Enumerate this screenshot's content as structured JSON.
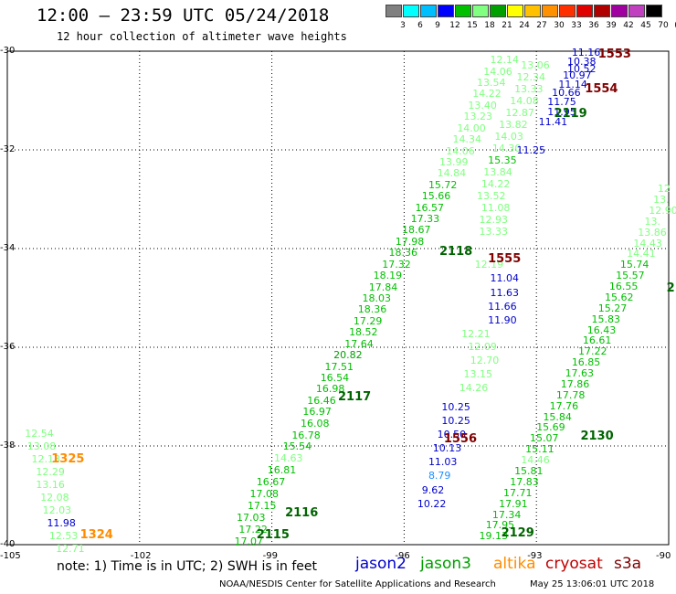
{
  "title": "12:00 — 23:59 UTC 05/24/2018",
  "subtitle": "12 hour collection of altimeter wave heights",
  "colorbar": {
    "labels": [
      "3",
      "6",
      "9",
      "12",
      "15",
      "18",
      "21",
      "24",
      "27",
      "30",
      "33",
      "36",
      "39",
      "42",
      "45",
      "70",
      "(ft)"
    ],
    "colors": [
      "#808080",
      "#00ffff",
      "#00bfff",
      "#0000ff",
      "#00c000",
      "#80ff80",
      "#00a000",
      "#ffff00",
      "#ffc000",
      "#ff9000",
      "#ff3000",
      "#e00000",
      "#b00000",
      "#a000a0",
      "#c040c0",
      "#000000"
    ]
  },
  "axes": {
    "lat_labels": [
      "-30",
      "-32",
      "-34",
      "-36",
      "-38",
      "-40"
    ],
    "lon_labels": [
      "-105",
      "-102",
      "-99",
      "-96",
      "-93",
      "-90"
    ],
    "lat_range": [
      -40,
      -30
    ],
    "lon_range": [
      -105,
      -90
    ]
  },
  "passes": [
    {
      "label": "1553",
      "color": "#800000",
      "lon": -91.6,
      "lat": -30.05
    },
    {
      "label": "1554",
      "color": "#800000",
      "lon": -91.9,
      "lat": -30.75
    },
    {
      "label": "2119",
      "color": "#006400",
      "lon": -92.6,
      "lat": -31.25
    },
    {
      "label": "2118",
      "color": "#006400",
      "lon": -95.2,
      "lat": -34.05
    },
    {
      "label": "1555",
      "color": "#800000",
      "lon": -94.1,
      "lat": -34.2
    },
    {
      "label": "2117",
      "color": "#006400",
      "lon": -97.5,
      "lat": -37.0
    },
    {
      "label": "1556",
      "color": "#800000",
      "lon": -95.1,
      "lat": -37.85
    },
    {
      "label": "2130",
      "color": "#006400",
      "lon": -92.0,
      "lat": -37.8
    },
    {
      "label": "1325",
      "color": "#ff8c00",
      "lon": -104.0,
      "lat": -38.25
    },
    {
      "label": "2116",
      "color": "#006400",
      "lon": -98.7,
      "lat": -39.35
    },
    {
      "label": "1324",
      "color": "#ff8c00",
      "lon": -103.35,
      "lat": -39.8
    },
    {
      "label": "2115",
      "color": "#006400",
      "lon": -99.35,
      "lat": -39.8
    },
    {
      "label": "2129",
      "color": "#006400",
      "lon": -93.8,
      "lat": -39.75
    },
    {
      "label": "2",
      "color": "#006400",
      "lon": -90.05,
      "lat": -34.8
    }
  ],
  "tracks": [
    {
      "name": "track-2115-2118",
      "points": [
        {
          "v": "17.07",
          "lon": -99.85,
          "lat": -39.92,
          "c": "#00c000"
        },
        {
          "v": "17.22",
          "lon": -99.75,
          "lat": -39.68,
          "c": "#00c000"
        },
        {
          "v": "17.03",
          "lon": -99.8,
          "lat": -39.44,
          "c": "#00c000"
        },
        {
          "v": "17.15",
          "lon": -99.55,
          "lat": -39.2,
          "c": "#00c000"
        },
        {
          "v": "17.08",
          "lon": -99.5,
          "lat": -38.96,
          "c": "#00c000"
        },
        {
          "v": "16.67",
          "lon": -99.35,
          "lat": -38.72,
          "c": "#00c000"
        },
        {
          "v": "16.81",
          "lon": -99.1,
          "lat": -38.48,
          "c": "#00c000"
        },
        {
          "v": "14.63",
          "lon": -98.95,
          "lat": -38.24,
          "c": "#80ff80"
        },
        {
          "v": "15.54",
          "lon": -98.75,
          "lat": -38.0,
          "c": "#00c000"
        },
        {
          "v": "16.78",
          "lon": -98.55,
          "lat": -37.77,
          "c": "#00c000"
        },
        {
          "v": "16.08",
          "lon": -98.35,
          "lat": -37.54,
          "c": "#00c000"
        },
        {
          "v": "16.97",
          "lon": -98.3,
          "lat": -37.3,
          "c": "#00c000"
        },
        {
          "v": "16.46",
          "lon": -98.2,
          "lat": -37.07,
          "c": "#00c000"
        },
        {
          "v": "16.98",
          "lon": -98.0,
          "lat": -36.84,
          "c": "#00c000"
        },
        {
          "v": "16.54",
          "lon": -97.9,
          "lat": -36.61,
          "c": "#00c000"
        },
        {
          "v": "17.51",
          "lon": -97.8,
          "lat": -36.38,
          "c": "#00c000"
        },
        {
          "v": "20.82",
          "lon": -97.6,
          "lat": -36.15,
          "c": "#00a000"
        },
        {
          "v": "17.64",
          "lon": -97.35,
          "lat": -35.92,
          "c": "#00c000"
        },
        {
          "v": "18.52",
          "lon": -97.25,
          "lat": -35.69,
          "c": "#00c000"
        },
        {
          "v": "17.29",
          "lon": -97.15,
          "lat": -35.46,
          "c": "#00c000"
        },
        {
          "v": "18.36",
          "lon": -97.05,
          "lat": -35.23,
          "c": "#00c000"
        },
        {
          "v": "18.03",
          "lon": -96.95,
          "lat": -35.0,
          "c": "#00c000"
        },
        {
          "v": "17.84",
          "lon": -96.8,
          "lat": -34.77,
          "c": "#00c000"
        },
        {
          "v": "18.19",
          "lon": -96.7,
          "lat": -34.54,
          "c": "#00c000"
        },
        {
          "v": "17.32",
          "lon": -96.5,
          "lat": -34.31,
          "c": "#00c000"
        },
        {
          "v": "18.36",
          "lon": -96.35,
          "lat": -34.08,
          "c": "#00c000"
        },
        {
          "v": "17.98",
          "lon": -96.2,
          "lat": -33.85,
          "c": "#00c000"
        },
        {
          "v": "18.67",
          "lon": -96.05,
          "lat": -33.62,
          "c": "#00c000"
        },
        {
          "v": "17.33",
          "lon": -95.85,
          "lat": -33.39,
          "c": "#00c000"
        },
        {
          "v": "16.57",
          "lon": -95.75,
          "lat": -33.16,
          "c": "#00c000"
        },
        {
          "v": "15.66",
          "lon": -95.6,
          "lat": -32.93,
          "c": "#00c000"
        },
        {
          "v": "15.72",
          "lon": -95.45,
          "lat": -32.7,
          "c": "#00c000"
        },
        {
          "v": "14.84",
          "lon": -95.25,
          "lat": -32.47,
          "c": "#80ff80"
        },
        {
          "v": "13.99",
          "lon": -95.2,
          "lat": -32.24,
          "c": "#80ff80"
        },
        {
          "v": "14.06",
          "lon": -95.05,
          "lat": -32.01,
          "c": "#80ff80"
        },
        {
          "v": "14.34",
          "lon": -94.9,
          "lat": -31.78,
          "c": "#80ff80"
        },
        {
          "v": "14.00",
          "lon": -94.8,
          "lat": -31.55,
          "c": "#80ff80"
        },
        {
          "v": "13.23",
          "lon": -94.65,
          "lat": -31.32,
          "c": "#80ff80"
        },
        {
          "v": "13.40",
          "lon": -94.55,
          "lat": -31.09,
          "c": "#80ff80"
        },
        {
          "v": "14.22",
          "lon": -94.45,
          "lat": -30.86,
          "c": "#80ff80"
        },
        {
          "v": "13.54",
          "lon": -94.35,
          "lat": -30.63,
          "c": "#80ff80"
        },
        {
          "v": "14.06",
          "lon": -94.2,
          "lat": -30.4,
          "c": "#80ff80"
        },
        {
          "v": "12.14",
          "lon": -94.05,
          "lat": -30.17,
          "c": "#80ff80"
        }
      ]
    },
    {
      "name": "track-2117-2119",
      "points": [
        {
          "v": "13.33",
          "lon": -94.3,
          "lat": -33.64,
          "c": "#80ff80"
        },
        {
          "v": "12.93",
          "lon": -94.3,
          "lat": -33.4,
          "c": "#80ff80"
        },
        {
          "v": "11.08",
          "lon": -94.25,
          "lat": -33.16,
          "c": "#80ff80"
        },
        {
          "v": "13.52",
          "lon": -94.35,
          "lat": -32.92,
          "c": "#80ff80"
        },
        {
          "v": "14.22",
          "lon": -94.25,
          "lat": -32.68,
          "c": "#80ff80"
        },
        {
          "v": "13.84",
          "lon": -94.2,
          "lat": -32.44,
          "c": "#80ff80"
        },
        {
          "v": "15.35",
          "lon": -94.1,
          "lat": -32.2,
          "c": "#00c000"
        },
        {
          "v": "14.30",
          "lon": -94.0,
          "lat": -31.96,
          "c": "#80ff80"
        },
        {
          "v": "14.03",
          "lon": -93.95,
          "lat": -31.72,
          "c": "#80ff80"
        },
        {
          "v": "13.82",
          "lon": -93.85,
          "lat": -31.48,
          "c": "#80ff80"
        },
        {
          "v": "12.87",
          "lon": -93.7,
          "lat": -31.24,
          "c": "#80ff80"
        },
        {
          "v": "14.08",
          "lon": -93.6,
          "lat": -31.0,
          "c": "#80ff80"
        },
        {
          "v": "13.33",
          "lon": -93.5,
          "lat": -30.76,
          "c": "#80ff80"
        },
        {
          "v": "12.34",
          "lon": -93.45,
          "lat": -30.52,
          "c": "#80ff80"
        },
        {
          "v": "13.06",
          "lon": -93.35,
          "lat": -30.28,
          "c": "#80ff80"
        }
      ]
    },
    {
      "name": "track-2130",
      "points": [
        {
          "v": "19.13",
          "lon": -94.3,
          "lat": -39.82,
          "c": "#00c000"
        },
        {
          "v": "17.95",
          "lon": -94.15,
          "lat": -39.6,
          "c": "#00c000"
        },
        {
          "v": "17.34",
          "lon": -94.0,
          "lat": -39.38,
          "c": "#00c000"
        },
        {
          "v": "17.91",
          "lon": -93.85,
          "lat": -39.16,
          "c": "#00c000"
        },
        {
          "v": "17.71",
          "lon": -93.75,
          "lat": -38.94,
          "c": "#00c000"
        },
        {
          "v": "17.83",
          "lon": -93.6,
          "lat": -38.72,
          "c": "#00c000"
        },
        {
          "v": "15.81",
          "lon": -93.5,
          "lat": -38.5,
          "c": "#00c000"
        },
        {
          "v": "14.46",
          "lon": -93.35,
          "lat": -38.28,
          "c": "#80ff80"
        },
        {
          "v": "15.11",
          "lon": -93.25,
          "lat": -38.06,
          "c": "#00c000"
        },
        {
          "v": "15.07",
          "lon": -93.15,
          "lat": -37.84,
          "c": "#00c000"
        },
        {
          "v": "15.69",
          "lon": -93.0,
          "lat": -37.62,
          "c": "#00c000"
        },
        {
          "v": "15.84",
          "lon": -92.85,
          "lat": -37.4,
          "c": "#00c000"
        },
        {
          "v": "17.76",
          "lon": -92.7,
          "lat": -37.18,
          "c": "#00c000"
        },
        {
          "v": "17.78",
          "lon": -92.55,
          "lat": -36.96,
          "c": "#00c000"
        },
        {
          "v": "17.86",
          "lon": -92.45,
          "lat": -36.74,
          "c": "#00c000"
        },
        {
          "v": "17.63",
          "lon": -92.35,
          "lat": -36.52,
          "c": "#00c000"
        },
        {
          "v": "16.85",
          "lon": -92.2,
          "lat": -36.3,
          "c": "#00c000"
        },
        {
          "v": "17.22",
          "lon": -92.05,
          "lat": -36.08,
          "c": "#00c000"
        },
        {
          "v": "16.61",
          "lon": -91.95,
          "lat": -35.86,
          "c": "#00c000"
        },
        {
          "v": "16.43",
          "lon": -91.85,
          "lat": -35.64,
          "c": "#00c000"
        },
        {
          "v": "15.83",
          "lon": -91.75,
          "lat": -35.42,
          "c": "#00c000"
        },
        {
          "v": "15.27",
          "lon": -91.6,
          "lat": -35.2,
          "c": "#00c000"
        },
        {
          "v": "15.62",
          "lon": -91.45,
          "lat": -34.98,
          "c": "#00c000"
        },
        {
          "v": "16.55",
          "lon": -91.35,
          "lat": -34.76,
          "c": "#00c000"
        },
        {
          "v": "15.57",
          "lon": -91.2,
          "lat": -34.54,
          "c": "#00c000"
        },
        {
          "v": "15.74",
          "lon": -91.1,
          "lat": -34.32,
          "c": "#00c000"
        },
        {
          "v": "14.41",
          "lon": -90.95,
          "lat": -34.1,
          "c": "#80ff80"
        },
        {
          "v": "14.43",
          "lon": -90.8,
          "lat": -33.88,
          "c": "#80ff80"
        },
        {
          "v": "13.86",
          "lon": -90.7,
          "lat": -33.66,
          "c": "#80ff80"
        },
        {
          "v": "13.",
          "lon": -90.55,
          "lat": -33.44,
          "c": "#80ff80"
        },
        {
          "v": "12.90",
          "lon": -90.45,
          "lat": -33.22,
          "c": "#80ff80"
        },
        {
          "v": "13.",
          "lon": -90.35,
          "lat": -33.0,
          "c": "#80ff80"
        },
        {
          "v": "12",
          "lon": -90.25,
          "lat": -32.78,
          "c": "#80ff80"
        }
      ]
    },
    {
      "name": "track-jason2-1553-1556",
      "points": [
        {
          "v": "11.16",
          "lon": -92.2,
          "lat": -30.02,
          "c": "#0000cd"
        },
        {
          "v": "10.38",
          "lon": -92.3,
          "lat": -30.2,
          "c": "#0000cd"
        },
        {
          "v": "10.52",
          "lon": -92.3,
          "lat": -30.36,
          "c": "#0000cd"
        },
        {
          "v": "10.97",
          "lon": -92.4,
          "lat": -30.48,
          "c": "#0000cd"
        },
        {
          "v": "11.14",
          "lon": -92.5,
          "lat": -30.66,
          "c": "#0000cd"
        },
        {
          "v": "10.66",
          "lon": -92.65,
          "lat": -30.84,
          "c": "#0000cd"
        },
        {
          "v": "11.75",
          "lon": -92.75,
          "lat": -31.02,
          "c": "#0000cd"
        },
        {
          "v": "11.95",
          "lon": -92.75,
          "lat": -31.22,
          "c": "#0000cd"
        },
        {
          "v": "11.41",
          "lon": -92.95,
          "lat": -31.42,
          "c": "#0000cd"
        },
        {
          "v": "11.25",
          "lon": -93.45,
          "lat": -32.0,
          "c": "#0000cd"
        },
        {
          "v": "11.04",
          "lon": -94.05,
          "lat": -34.6,
          "c": "#0000cd"
        },
        {
          "v": "11.63",
          "lon": -94.05,
          "lat": -34.88,
          "c": "#0000cd"
        },
        {
          "v": "11.66",
          "lon": -94.1,
          "lat": -35.16,
          "c": "#0000cd"
        },
        {
          "v": "11.90",
          "lon": -94.1,
          "lat": -35.44,
          "c": "#0000cd"
        },
        {
          "v": "10.25",
          "lon": -95.15,
          "lat": -37.2,
          "c": "#0000cd"
        },
        {
          "v": "10.25",
          "lon": -95.15,
          "lat": -37.48,
          "c": "#0000cd"
        },
        {
          "v": "10.50",
          "lon": -95.25,
          "lat": -37.76,
          "c": "#0000cd"
        },
        {
          "v": "10.13",
          "lon": -95.35,
          "lat": -38.04,
          "c": "#0000cd"
        },
        {
          "v": "11.03",
          "lon": -95.45,
          "lat": -38.32,
          "c": "#0000cd"
        },
        {
          "v": "8.79",
          "lon": -95.45,
          "lat": -38.6,
          "c": "#1e90ff"
        },
        {
          "v": "9.62",
          "lon": -95.6,
          "lat": -38.88,
          "c": "#0000cd"
        },
        {
          "v": "10.22",
          "lon": -95.7,
          "lat": -39.16,
          "c": "#0000cd"
        },
        {
          "v": "12.21",
          "lon": -94.7,
          "lat": -35.72,
          "c": "#80ff80"
        },
        {
          "v": "12.09",
          "lon": -94.55,
          "lat": -35.98,
          "c": "#80ff80"
        },
        {
          "v": "12.70",
          "lon": -94.5,
          "lat": -36.26,
          "c": "#80ff80"
        },
        {
          "v": "13.15",
          "lon": -94.65,
          "lat": -36.54,
          "c": "#80ff80"
        },
        {
          "v": "14.26",
          "lon": -94.75,
          "lat": -36.82,
          "c": "#80ff80"
        },
        {
          "v": "12.19",
          "lon": -94.4,
          "lat": -34.32,
          "c": "#80ff80"
        }
      ]
    },
    {
      "name": "track-altika-1324-1325",
      "points": [
        {
          "v": "12.54",
          "lon": -104.6,
          "lat": -37.74,
          "c": "#80ff80"
        },
        {
          "v": "13.08",
          "lon": -104.55,
          "lat": -38.0,
          "c": "#80ff80"
        },
        {
          "v": "12.18",
          "lon": -104.45,
          "lat": -38.26,
          "c": "#80ff80"
        },
        {
          "v": "12.29",
          "lon": -104.35,
          "lat": -38.52,
          "c": "#80ff80"
        },
        {
          "v": "13.16",
          "lon": -104.35,
          "lat": -38.78,
          "c": "#80ff80"
        },
        {
          "v": "12.08",
          "lon": -104.25,
          "lat": -39.04,
          "c": "#80ff80"
        },
        {
          "v": "12.03",
          "lon": -104.2,
          "lat": -39.3,
          "c": "#80ff80"
        },
        {
          "v": "11.98",
          "lon": -104.1,
          "lat": -39.56,
          "c": "#0000cd"
        },
        {
          "v": "12.53",
          "lon": -104.05,
          "lat": -39.82,
          "c": "#80ff80"
        },
        {
          "v": "12.71",
          "lon": -103.9,
          "lat": -40.08,
          "c": "#80ff80"
        }
      ]
    }
  ],
  "legend": {
    "note": "note: 1) Time is in UTC; 2) SWH is in feet",
    "satellites": [
      {
        "name": "jason2",
        "color": "#0000cd"
      },
      {
        "name": "jason3",
        "color": "#00a000"
      },
      {
        "name": "altika",
        "color": "#ff8c00"
      },
      {
        "name": "cryosat",
        "color": "#c00000"
      },
      {
        "name": "s3a",
        "color": "#800000"
      }
    ]
  },
  "credit": "NOAA/NESDIS Center for Satellite Applications and Research",
  "timestamp": "May 25 13:06:01 UTC 2018"
}
